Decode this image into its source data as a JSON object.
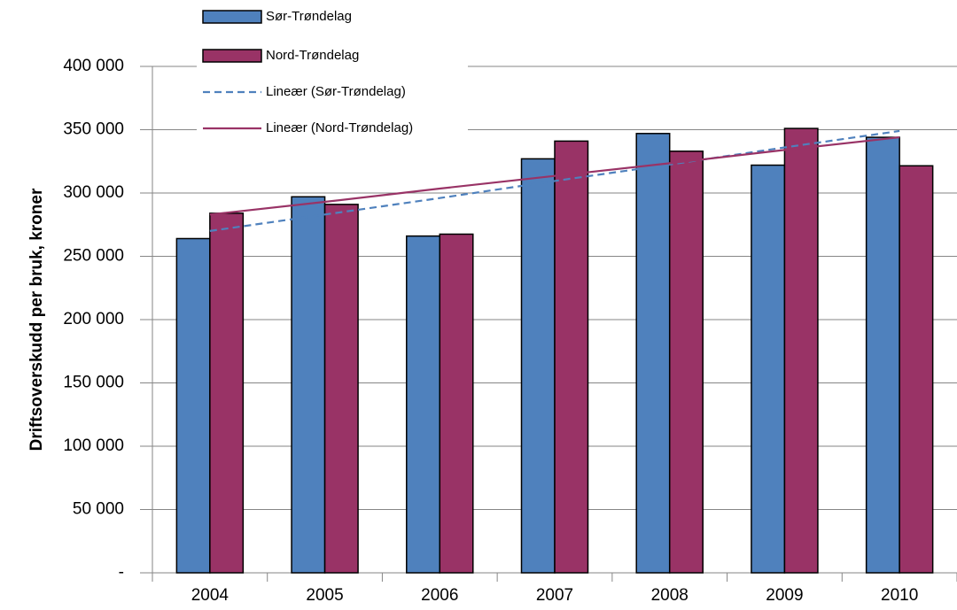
{
  "chart_data": {
    "type": "bar",
    "y_axis_label": "Driftsoverskudd per bruk, kroner",
    "categories": [
      "2004",
      "2005",
      "2006",
      "2007",
      "2008",
      "2009",
      "2010"
    ],
    "series": [
      {
        "name": "Sør-Trøndelag",
        "type": "bar",
        "color": "#4f81bd",
        "values": [
          264000,
          297000,
          266000,
          327000,
          347000,
          322000,
          344000
        ]
      },
      {
        "name": "Nord-Trøndelag",
        "type": "bar",
        "color": "#993366",
        "values": [
          284000,
          291000,
          267500,
          341000,
          333000,
          351000,
          321500
        ]
      },
      {
        "name": "Lineær (Sør-Trøndelag)",
        "type": "line",
        "dashed": true,
        "color": "#4f81bd",
        "values": [
          270000,
          283000,
          296000,
          309500,
          322500,
          336000,
          349000
        ]
      },
      {
        "name": "Lineær (Nord-Trøndelag)",
        "type": "line",
        "dashed": false,
        "color": "#993366",
        "values": [
          283000,
          293000,
          303500,
          313500,
          323500,
          334000,
          344000
        ]
      }
    ],
    "ylim": [
      0,
      400000
    ],
    "yticks": [
      {
        "value": 0,
        "label": "-"
      },
      {
        "value": 50000,
        "label": "50 000"
      },
      {
        "value": 100000,
        "label": "100 000"
      },
      {
        "value": 150000,
        "label": "150 000"
      },
      {
        "value": 200000,
        "label": "200 000"
      },
      {
        "value": 250000,
        "label": "250 000"
      },
      {
        "value": 300000,
        "label": "300 000"
      },
      {
        "value": 350000,
        "label": "350 000"
      },
      {
        "value": 400000,
        "label": "400 000"
      }
    ],
    "grid": true,
    "legend": "top"
  }
}
